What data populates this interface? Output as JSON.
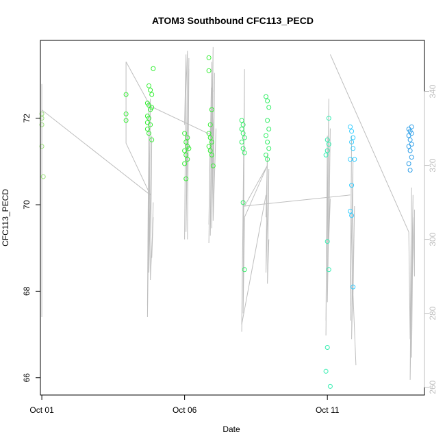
{
  "chart_data": {
    "type": "scatter",
    "title": "ATOM3 Southbound CFC113_PECD",
    "xlabel": "Date",
    "ylabel": "CFC113_PECD",
    "x_ticks": [
      {
        "day": 1,
        "label": "Oct 01"
      },
      {
        "day": 6,
        "label": "Oct 06"
      },
      {
        "day": 11,
        "label": "Oct 11"
      }
    ],
    "y_ticks": [
      66,
      68,
      70,
      72
    ],
    "y2_ticks": [
      260,
      280,
      300,
      320,
      340
    ],
    "xlim": [
      0.95,
      14.4
    ],
    "ylim": [
      65.6,
      73.8
    ],
    "y2lim": [
      257.9,
      353.8
    ],
    "grid": false,
    "legend": "none",
    "colors": {
      "frame": "#000000",
      "secondary_line": "#bebebe",
      "right_axis": "#bebebe",
      "point_low": "#9be07a",
      "point_mid": "#33ee33",
      "point_high": "#33ccff",
      "point_last": "#2f9fe8"
    },
    "series": [
      {
        "kind": "points",
        "points": [
          {
            "x": 1.0,
            "y": 72.1
          },
          {
            "x": 1.0,
            "y": 72.0
          },
          {
            "x": 1.0,
            "y": 71.85
          },
          {
            "x": 1.0,
            "y": 71.35
          },
          {
            "x": 1.05,
            "y": 70.65
          },
          {
            "x": 3.95,
            "y": 72.55
          },
          {
            "x": 3.95,
            "y": 72.1
          },
          {
            "x": 3.95,
            "y": 71.95
          },
          {
            "x": 4.75,
            "y": 72.75
          },
          {
            "x": 4.8,
            "y": 72.65
          },
          {
            "x": 4.85,
            "y": 72.55
          },
          {
            "x": 4.7,
            "y": 72.35
          },
          {
            "x": 4.75,
            "y": 72.3
          },
          {
            "x": 4.8,
            "y": 72.2
          },
          {
            "x": 4.7,
            "y": 72.05
          },
          {
            "x": 4.75,
            "y": 72.0
          },
          {
            "x": 4.7,
            "y": 71.9
          },
          {
            "x": 4.8,
            "y": 71.85
          },
          {
            "x": 4.75,
            "y": 71.65
          },
          {
            "x": 4.85,
            "y": 71.5
          },
          {
            "x": 4.9,
            "y": 73.15
          },
          {
            "x": 4.85,
            "y": 72.25
          },
          {
            "x": 4.7,
            "y": 71.75
          },
          {
            "x": 6.0,
            "y": 71.65
          },
          {
            "x": 6.05,
            "y": 71.45
          },
          {
            "x": 6.1,
            "y": 71.35
          },
          {
            "x": 6.0,
            "y": 71.25
          },
          {
            "x": 6.05,
            "y": 71.15
          },
          {
            "x": 6.1,
            "y": 71.05
          },
          {
            "x": 6.0,
            "y": 70.95
          },
          {
            "x": 6.05,
            "y": 70.6
          },
          {
            "x": 6.1,
            "y": 71.55
          },
          {
            "x": 6.15,
            "y": 71.3
          },
          {
            "x": 6.85,
            "y": 73.4
          },
          {
            "x": 6.85,
            "y": 73.1
          },
          {
            "x": 6.95,
            "y": 72.2
          },
          {
            "x": 6.85,
            "y": 71.65
          },
          {
            "x": 6.9,
            "y": 71.55
          },
          {
            "x": 6.95,
            "y": 71.45
          },
          {
            "x": 6.85,
            "y": 71.35
          },
          {
            "x": 6.9,
            "y": 71.25
          },
          {
            "x": 6.95,
            "y": 71.15
          },
          {
            "x": 7.0,
            "y": 70.9
          },
          {
            "x": 6.9,
            "y": 71.85
          },
          {
            "x": 8.0,
            "y": 71.95
          },
          {
            "x": 8.05,
            "y": 71.85
          },
          {
            "x": 8.0,
            "y": 71.75
          },
          {
            "x": 8.05,
            "y": 71.65
          },
          {
            "x": 8.1,
            "y": 71.55
          },
          {
            "x": 8.0,
            "y": 71.45
          },
          {
            "x": 8.05,
            "y": 71.3
          },
          {
            "x": 8.1,
            "y": 71.2
          },
          {
            "x": 8.05,
            "y": 70.05
          },
          {
            "x": 8.1,
            "y": 68.5
          },
          {
            "x": 8.85,
            "y": 72.5
          },
          {
            "x": 8.9,
            "y": 72.4
          },
          {
            "x": 8.95,
            "y": 72.25
          },
          {
            "x": 8.9,
            "y": 71.95
          },
          {
            "x": 8.95,
            "y": 71.75
          },
          {
            "x": 8.85,
            "y": 71.6
          },
          {
            "x": 8.9,
            "y": 71.45
          },
          {
            "x": 8.95,
            "y": 71.3
          },
          {
            "x": 8.85,
            "y": 71.15
          },
          {
            "x": 8.9,
            "y": 71.05
          },
          {
            "x": 11.05,
            "y": 72.0
          },
          {
            "x": 11.0,
            "y": 71.5
          },
          {
            "x": 11.05,
            "y": 71.4
          },
          {
            "x": 11.0,
            "y": 71.25
          },
          {
            "x": 10.95,
            "y": 71.15
          },
          {
            "x": 11.0,
            "y": 69.15
          },
          {
            "x": 11.05,
            "y": 68.5
          },
          {
            "x": 11.0,
            "y": 66.7
          },
          {
            "x": 10.95,
            "y": 66.15
          },
          {
            "x": 11.1,
            "y": 65.8
          },
          {
            "x": 11.8,
            "y": 71.8
          },
          {
            "x": 11.85,
            "y": 71.7
          },
          {
            "x": 11.9,
            "y": 71.55
          },
          {
            "x": 11.85,
            "y": 71.45
          },
          {
            "x": 11.9,
            "y": 71.3
          },
          {
            "x": 11.8,
            "y": 71.05
          },
          {
            "x": 11.85,
            "y": 70.45
          },
          {
            "x": 11.8,
            "y": 69.85
          },
          {
            "x": 11.85,
            "y": 69.75
          },
          {
            "x": 11.9,
            "y": 68.1
          },
          {
            "x": 11.95,
            "y": 71.05
          },
          {
            "x": 13.85,
            "y": 71.75
          },
          {
            "x": 13.9,
            "y": 71.7
          },
          {
            "x": 13.95,
            "y": 71.8
          },
          {
            "x": 13.85,
            "y": 71.6
          },
          {
            "x": 13.9,
            "y": 71.5
          },
          {
            "x": 13.95,
            "y": 71.4
          },
          {
            "x": 13.85,
            "y": 71.35
          },
          {
            "x": 13.9,
            "y": 71.25
          },
          {
            "x": 13.95,
            "y": 71.1
          },
          {
            "x": 13.85,
            "y": 70.95
          },
          {
            "x": 13.9,
            "y": 70.8
          },
          {
            "x": 13.95,
            "y": 71.65
          }
        ]
      },
      {
        "kind": "line",
        "axis": "right",
        "segments": [
          [
            [
              1.0,
              279
            ],
            [
              1.0,
              342
            ],
            [
              1.0,
              336
            ],
            [
              1.0,
              340
            ]
          ],
          [
            [
              1.0,
              335
            ],
            [
              4.8,
              312
            ]
          ],
          [
            [
              4.8,
              312
            ],
            [
              3.95,
              326
            ],
            [
              3.95,
              348
            ],
            [
              4.8,
              336
            ],
            [
              7.0,
              328
            ],
            [
              6.95,
              341
            ],
            [
              7.0,
              340
            ]
          ],
          [
            [
              4.7,
              282
            ],
            [
              4.75,
              337
            ],
            [
              4.7,
              279
            ],
            [
              4.8,
              338
            ],
            [
              4.75,
              291
            ],
            [
              4.85,
              328
            ],
            [
              4.8,
              289
            ],
            [
              4.9,
              306
            ],
            [
              4.85,
              295
            ],
            [
              4.9,
              310
            ]
          ],
          [
            [
              6.0,
              300
            ],
            [
              6.05,
              350
            ],
            [
              6.0,
              331
            ],
            [
              6.1,
              351
            ],
            [
              6.05,
              302
            ],
            [
              6.15,
              349
            ],
            [
              6.1,
              300
            ],
            [
              6.15,
              346
            ]
          ],
          [
            [
              6.85,
              299
            ],
            [
              6.9,
              330
            ],
            [
              6.85,
              304
            ],
            [
              6.95,
              348
            ],
            [
              6.9,
              301
            ],
            [
              7.0,
              352
            ],
            [
              6.95,
              303
            ],
            [
              7.05,
              345
            ],
            [
              7.0,
              305
            ],
            [
              7.1,
              330
            ]
          ],
          [
            [
              8.0,
              277
            ],
            [
              8.05,
              309
            ],
            [
              8.0,
              275
            ],
            [
              8.1,
              346
            ],
            [
              8.05,
              280
            ],
            [
              8.1,
              306
            ]
          ],
          [
            [
              8.0,
              277
            ],
            [
              8.85,
              312
            ]
          ],
          [
            [
              8.1,
              306
            ],
            [
              8.9,
              320
            ],
            [
              8.1,
              309
            ],
            [
              11.8,
              312
            ]
          ],
          [
            [
              8.85,
              306
            ],
            [
              8.9,
              323
            ],
            [
              8.85,
              291
            ],
            [
              8.95,
              319
            ],
            [
              8.9,
              288
            ],
            [
              8.95,
              300
            ]
          ],
          [
            [
              10.95,
              274
            ],
            [
              11.0,
              328
            ],
            [
              10.95,
              278
            ],
            [
              11.05,
              338
            ],
            [
              11.0,
              283
            ],
            [
              11.1,
              330
            ],
            [
              11.05,
              300
            ],
            [
              11.1,
              311
            ]
          ],
          [
            [
              11.1,
              350
            ],
            [
              13.85,
              302
            ]
          ],
          [
            [
              11.8,
              278
            ],
            [
              11.85,
              328
            ],
            [
              11.8,
              282
            ],
            [
              11.9,
              322
            ],
            [
              11.85,
              273
            ],
            [
              11.95,
              309
            ],
            [
              11.9,
              285
            ],
            [
              12.0,
              266
            ]
          ],
          [
            [
              13.85,
              302
            ],
            [
              13.9,
              273
            ],
            [
              13.95,
              314
            ],
            [
              13.9,
              262
            ],
            [
              14.0,
              312
            ],
            [
              13.95,
              268
            ],
            [
              14.0,
              306
            ],
            [
              14.05,
              290
            ],
            [
              14.05,
              308
            ]
          ]
        ]
      }
    ]
  }
}
